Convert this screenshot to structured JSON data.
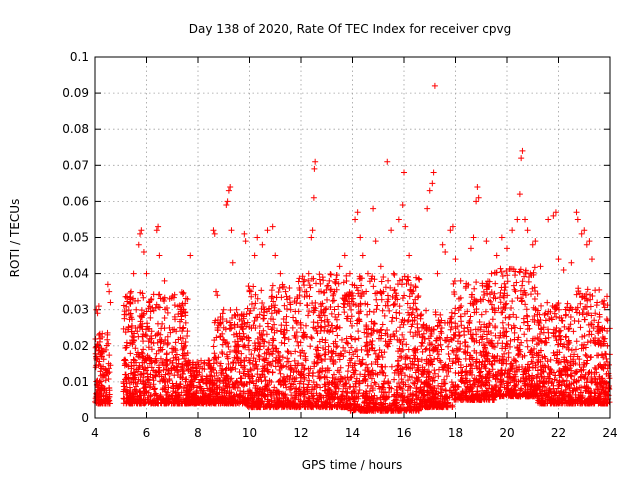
{
  "chart_data": {
    "type": "scatter",
    "title": "Day 138 of 2020, Rate Of TEC Index for receiver cpvg",
    "xlabel": "GPS time / hours",
    "ylabel": "ROTI / TECUs",
    "xlim": [
      4,
      24
    ],
    "ylim": [
      0,
      0.1
    ],
    "xticks": [
      "4",
      "6",
      "8",
      "10",
      "12",
      "14",
      "16",
      "18",
      "20",
      "22",
      "24"
    ],
    "yticks": [
      "0",
      "0.01",
      "0.02",
      "0.03",
      "0.04",
      "0.05",
      "0.06",
      "0.07",
      "0.08",
      "0.09",
      "0.1"
    ],
    "grid": true,
    "marker": "+",
    "color": "#ff0000",
    "series": [
      {
        "name": "ROTI",
        "points": [
          [
            4.05,
            0.03
          ],
          [
            4.1,
            0.029
          ],
          [
            4.15,
            0.031
          ],
          [
            4.2,
            0.022
          ],
          [
            4.25,
            0.018
          ],
          [
            4.3,
            0.012
          ],
          [
            4.35,
            0.008
          ],
          [
            4.4,
            0.006
          ],
          [
            4.5,
            0.037
          ],
          [
            4.55,
            0.035
          ],
          [
            4.6,
            0.032
          ],
          [
            4.5,
            0.005
          ],
          [
            5.2,
            0.012
          ],
          [
            5.3,
            0.025
          ],
          [
            5.4,
            0.035
          ],
          [
            5.5,
            0.04
          ],
          [
            5.6,
            0.03
          ],
          [
            5.7,
            0.048
          ],
          [
            5.75,
            0.051
          ],
          [
            5.8,
            0.052
          ],
          [
            5.9,
            0.046
          ],
          [
            6.0,
            0.04
          ],
          [
            6.1,
            0.032
          ],
          [
            6.2,
            0.022
          ],
          [
            6.4,
            0.052
          ],
          [
            6.45,
            0.053
          ],
          [
            6.5,
            0.045
          ],
          [
            6.7,
            0.038
          ],
          [
            6.9,
            0.033
          ],
          [
            7.1,
            0.028
          ],
          [
            7.3,
            0.025
          ],
          [
            7.5,
            0.02
          ],
          [
            7.6,
            0.018
          ],
          [
            7.7,
            0.045
          ],
          [
            7.8,
            0.014
          ],
          [
            8.0,
            0.012
          ],
          [
            8.2,
            0.01
          ],
          [
            8.4,
            0.016
          ],
          [
            8.6,
            0.052
          ],
          [
            8.65,
            0.051
          ],
          [
            8.7,
            0.035
          ],
          [
            8.75,
            0.034
          ],
          [
            9.0,
            0.025
          ],
          [
            9.1,
            0.059
          ],
          [
            9.15,
            0.06
          ],
          [
            9.2,
            0.063
          ],
          [
            9.25,
            0.064
          ],
          [
            9.3,
            0.052
          ],
          [
            9.35,
            0.043
          ],
          [
            9.5,
            0.03
          ],
          [
            9.7,
            0.022
          ],
          [
            9.8,
            0.051
          ],
          [
            9.85,
            0.049
          ],
          [
            10.0,
            0.035
          ],
          [
            10.2,
            0.045
          ],
          [
            10.3,
            0.05
          ],
          [
            10.5,
            0.048
          ],
          [
            10.7,
            0.052
          ],
          [
            10.9,
            0.053
          ],
          [
            11.0,
            0.045
          ],
          [
            11.2,
            0.04
          ],
          [
            11.4,
            0.035
          ],
          [
            11.6,
            0.03
          ],
          [
            11.8,
            0.027
          ],
          [
            11.9,
            0.02
          ],
          [
            12.3,
            0.04
          ],
          [
            12.4,
            0.05
          ],
          [
            12.45,
            0.052
          ],
          [
            12.5,
            0.061
          ],
          [
            12.52,
            0.069
          ],
          [
            12.55,
            0.071
          ],
          [
            12.7,
            0.035
          ],
          [
            12.9,
            0.03
          ],
          [
            13.1,
            0.038
          ],
          [
            13.3,
            0.035
          ],
          [
            13.5,
            0.042
          ],
          [
            13.7,
            0.045
          ],
          [
            13.9,
            0.04
          ],
          [
            14.1,
            0.055
          ],
          [
            14.2,
            0.057
          ],
          [
            14.3,
            0.05
          ],
          [
            14.4,
            0.045
          ],
          [
            14.6,
            0.04
          ],
          [
            14.8,
            0.058
          ],
          [
            14.9,
            0.049
          ],
          [
            15.1,
            0.042
          ],
          [
            15.2,
            0.035
          ],
          [
            15.35,
            0.071
          ],
          [
            15.5,
            0.052
          ],
          [
            15.6,
            0.04
          ],
          [
            15.8,
            0.055
          ],
          [
            15.95,
            0.059
          ],
          [
            16.0,
            0.068
          ],
          [
            16.05,
            0.053
          ],
          [
            16.2,
            0.045
          ],
          [
            16.3,
            0.035
          ],
          [
            16.5,
            0.03
          ],
          [
            16.7,
            0.025
          ],
          [
            16.9,
            0.058
          ],
          [
            17.0,
            0.063
          ],
          [
            17.1,
            0.065
          ],
          [
            17.15,
            0.068
          ],
          [
            17.2,
            0.092
          ],
          [
            17.3,
            0.04
          ],
          [
            17.5,
            0.048
          ],
          [
            17.6,
            0.046
          ],
          [
            17.8,
            0.052
          ],
          [
            17.9,
            0.053
          ],
          [
            18.0,
            0.044
          ],
          [
            18.2,
            0.038
          ],
          [
            18.4,
            0.036
          ],
          [
            18.6,
            0.047
          ],
          [
            18.7,
            0.05
          ],
          [
            18.8,
            0.06
          ],
          [
            18.85,
            0.064
          ],
          [
            18.9,
            0.061
          ],
          [
            19.2,
            0.049
          ],
          [
            19.4,
            0.04
          ],
          [
            19.6,
            0.045
          ],
          [
            19.8,
            0.05
          ],
          [
            20.0,
            0.047
          ],
          [
            20.2,
            0.052
          ],
          [
            20.4,
            0.055
          ],
          [
            20.5,
            0.062
          ],
          [
            20.55,
            0.072
          ],
          [
            20.6,
            0.074
          ],
          [
            20.7,
            0.055
          ],
          [
            20.8,
            0.052
          ],
          [
            21.0,
            0.048
          ],
          [
            21.1,
            0.049
          ],
          [
            21.3,
            0.042
          ],
          [
            21.6,
            0.055
          ],
          [
            21.8,
            0.056
          ],
          [
            21.9,
            0.057
          ],
          [
            22.0,
            0.044
          ],
          [
            22.2,
            0.041
          ],
          [
            22.5,
            0.043
          ],
          [
            22.7,
            0.057
          ],
          [
            22.75,
            0.055
          ],
          [
            22.9,
            0.051
          ],
          [
            23.0,
            0.052
          ],
          [
            23.1,
            0.048
          ],
          [
            23.2,
            0.049
          ],
          [
            23.3,
            0.044
          ],
          [
            23.5,
            0.032
          ],
          [
            23.6,
            0.028
          ],
          [
            23.7,
            0.025
          ],
          [
            23.8,
            0.022
          ],
          [
            23.9,
            0.02
          ]
        ],
        "dense_bands": [
          {
            "from": 4.0,
            "to": 4.6,
            "low": 0.004,
            "high": 0.024
          },
          {
            "from": 5.1,
            "to": 7.6,
            "low": 0.004,
            "high": 0.035
          },
          {
            "from": 7.6,
            "to": 8.6,
            "low": 0.004,
            "high": 0.016
          },
          {
            "from": 8.6,
            "to": 9.9,
            "low": 0.004,
            "high": 0.03
          },
          {
            "from": 9.9,
            "to": 11.9,
            "low": 0.003,
            "high": 0.037
          },
          {
            "from": 11.9,
            "to": 13.9,
            "low": 0.003,
            "high": 0.04
          },
          {
            "from": 13.9,
            "to": 16.6,
            "low": 0.002,
            "high": 0.04
          },
          {
            "from": 16.6,
            "to": 17.9,
            "low": 0.003,
            "high": 0.03
          },
          {
            "from": 17.9,
            "to": 19.5,
            "low": 0.005,
            "high": 0.038
          },
          {
            "from": 19.5,
            "to": 21.2,
            "low": 0.006,
            "high": 0.042
          },
          {
            "from": 21.2,
            "to": 22.6,
            "low": 0.004,
            "high": 0.032
          },
          {
            "from": 22.6,
            "to": 24.0,
            "low": 0.004,
            "high": 0.036
          }
        ]
      }
    ]
  }
}
